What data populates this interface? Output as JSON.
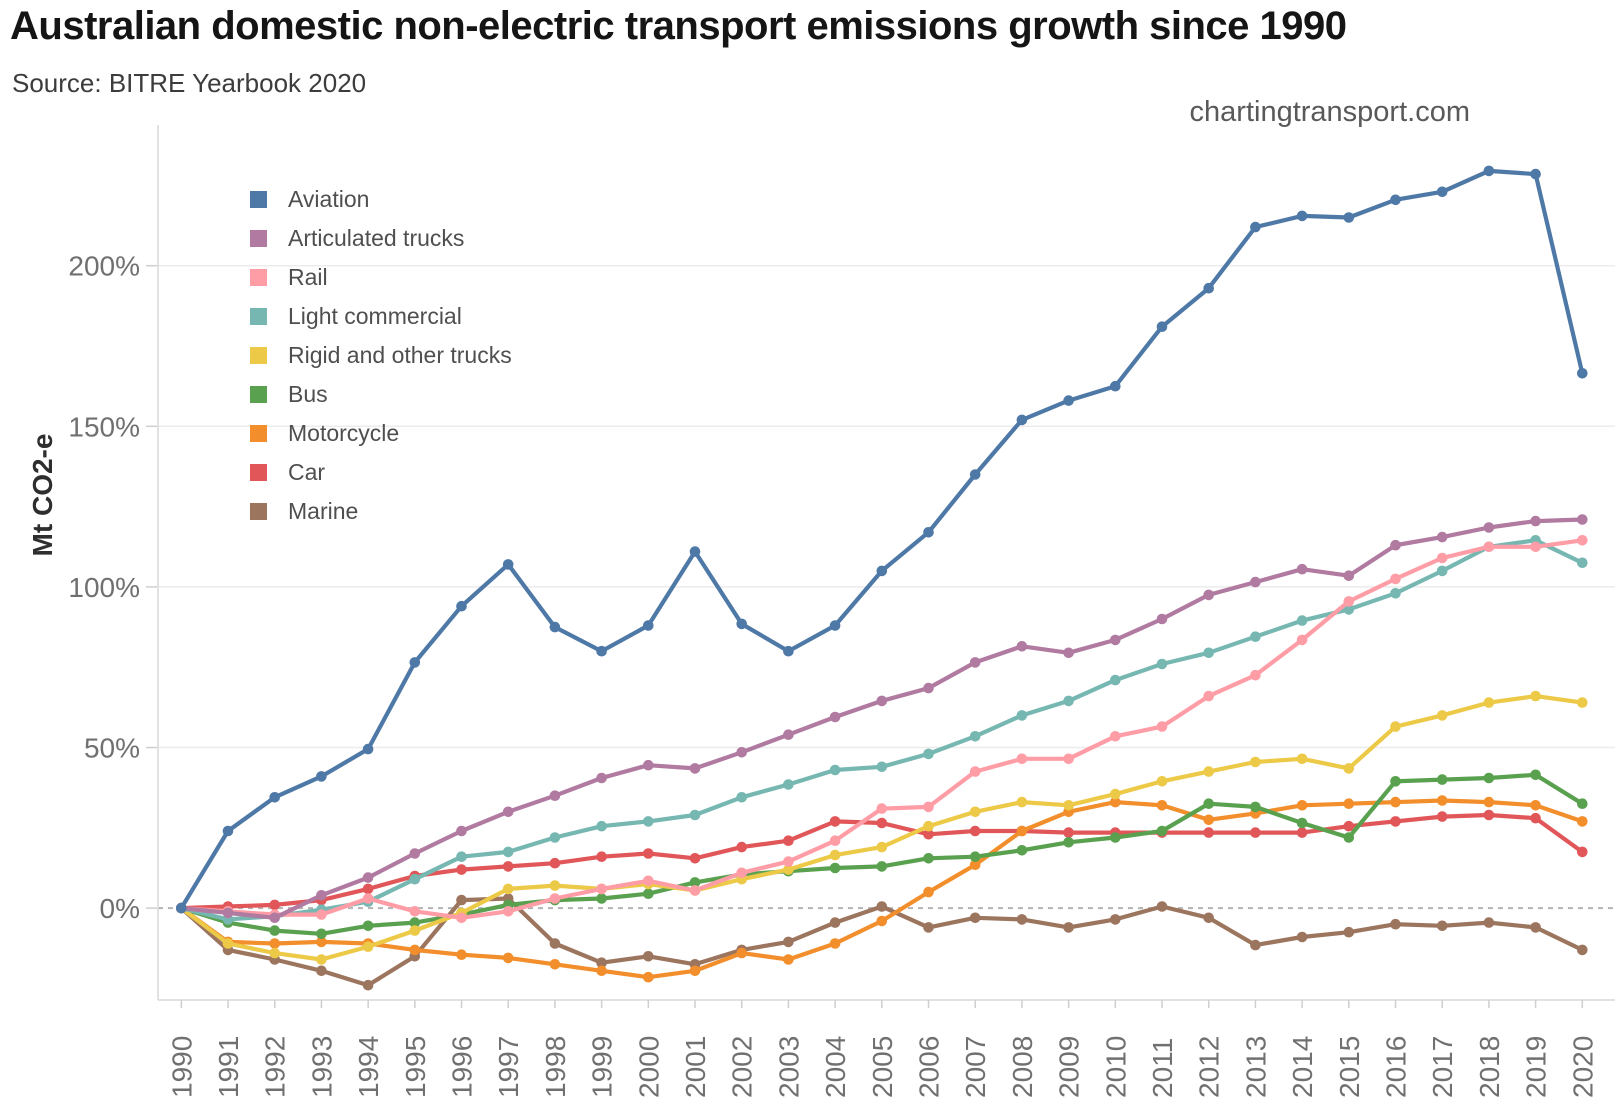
{
  "header": {
    "title": "Australian domestic non-electric transport emissions growth since 1990",
    "source": "Source: BITRE Yearbook 2020",
    "watermark": "chartingtransport.com"
  },
  "chart_data": {
    "type": "line",
    "title": "Australian domestic non-electric transport emissions growth since 1990",
    "xlabel": "",
    "ylabel": "Mt CO2-e",
    "unit": "% growth since 1990",
    "grid": "horizontal",
    "zero_line": "dashed",
    "legend_position": "upper-left-inside",
    "xlim": [
      1989.5,
      2020.7
    ],
    "ylim": [
      -28.6,
      243.8
    ],
    "y_ticks": [
      0,
      50,
      100,
      150,
      200
    ],
    "y_tick_labels": [
      "0%",
      "50%",
      "100%",
      "150%",
      "200%"
    ],
    "x": [
      1990,
      1991,
      1992,
      1993,
      1994,
      1995,
      1996,
      1997,
      1998,
      1999,
      2000,
      2001,
      2002,
      2003,
      2004,
      2005,
      2006,
      2007,
      2008,
      2009,
      2010,
      2011,
      2012,
      2013,
      2014,
      2015,
      2016,
      2017,
      2018,
      2019,
      2020
    ],
    "x_tick_labels": [
      "1990",
      "1991",
      "1992",
      "1993",
      "1994",
      "1995",
      "1996",
      "1997",
      "1998",
      "1999",
      "2000",
      "2001",
      "2002",
      "2003",
      "2004",
      "2005",
      "2006",
      "2007",
      "2008",
      "2009",
      "2010",
      "2011",
      "2012",
      "2013",
      "2014",
      "2015",
      "2016",
      "2017",
      "2018",
      "2019",
      "2020"
    ],
    "series": [
      {
        "name": "Aviation",
        "color": "#4e79a7",
        "values": [
          0,
          24,
          34.5,
          41,
          49.5,
          76.5,
          94,
          107,
          87.5,
          80,
          88,
          111,
          88.5,
          80,
          88,
          105,
          117,
          135,
          152,
          158,
          162.5,
          181,
          193,
          212,
          215.5,
          215,
          220.5,
          223,
          229.5,
          228.5,
          166.5
        ]
      },
      {
        "name": "Articulated trucks",
        "color": "#b07aa1",
        "values": [
          0,
          -1.5,
          -3,
          4,
          9.5,
          17,
          24,
          30,
          35,
          40.5,
          44.5,
          43.5,
          48.5,
          54,
          59.5,
          64.5,
          68.5,
          76.5,
          81.5,
          79.5,
          83.5,
          90,
          97.5,
          101.5,
          105.5,
          103.5,
          113,
          115.5,
          118.5,
          120.5,
          121
        ]
      },
      {
        "name": "Rail",
        "color": "#ff9da7",
        "values": [
          0,
          -1,
          -2,
          -2,
          3,
          -1,
          -3,
          -1,
          3,
          6,
          8.5,
          5.5,
          11,
          14.5,
          21,
          31,
          31.5,
          42.5,
          46.5,
          46.5,
          53.5,
          56.5,
          66,
          72.5,
          83.5,
          95.5,
          102.5,
          109,
          112.5,
          112.5,
          114.5
        ]
      },
      {
        "name": "Light commercial",
        "color": "#76b7b2",
        "values": [
          0,
          -3.5,
          -2.5,
          -0.5,
          2,
          9,
          16,
          17.5,
          22,
          25.5,
          27,
          29,
          34.5,
          38.5,
          43,
          44,
          48,
          53.5,
          60,
          64.5,
          71,
          76,
          79.5,
          84.5,
          89.5,
          93,
          98,
          105,
          112.5,
          114.5,
          107.5
        ]
      },
      {
        "name": "Rigid and other trucks",
        "color": "#edc948",
        "values": [
          0,
          -11,
          -14,
          -16,
          -12,
          -7,
          -1.5,
          6,
          7,
          6,
          7.5,
          5.5,
          9,
          12,
          16.5,
          19,
          25.5,
          30,
          33,
          32,
          35.5,
          39.5,
          42.5,
          45.5,
          46.5,
          43.5,
          56.5,
          60,
          64,
          66,
          64
        ]
      },
      {
        "name": "Bus",
        "color": "#59a14f",
        "values": [
          0,
          -4.5,
          -7,
          -8,
          -5.5,
          -4.5,
          -2,
          1,
          2.5,
          3,
          4.5,
          8,
          10.5,
          11.5,
          12.5,
          13,
          15.5,
          16,
          18,
          20.5,
          22,
          24,
          32.5,
          31.5,
          26.5,
          22,
          39.5,
          40,
          40.5,
          41.5,
          32.5
        ]
      },
      {
        "name": "Motorcycle",
        "color": "#f28e2b",
        "values": [
          0,
          -10.5,
          -11,
          -10.5,
          -11,
          -13,
          -14.5,
          -15.5,
          -17.5,
          -19.5,
          -21.5,
          -19.5,
          -14,
          -16,
          -11,
          -4,
          5,
          13.5,
          24,
          30,
          33,
          32,
          27.5,
          29.5,
          32,
          32.5,
          33,
          33.5,
          33,
          32,
          27
        ]
      },
      {
        "name": "Car",
        "color": "#e15759",
        "values": [
          0,
          0.5,
          1,
          2.5,
          6,
          10,
          12,
          13,
          14,
          16,
          17,
          15.5,
          19,
          21,
          27,
          26.5,
          23,
          24,
          24,
          23.5,
          23.5,
          23.5,
          23.5,
          23.5,
          23.5,
          25.5,
          27,
          28.5,
          29,
          28,
          17.5
        ]
      },
      {
        "name": "Marine",
        "color": "#9c755f",
        "values": [
          0,
          -13,
          -16,
          -19.5,
          -24,
          -15,
          2.5,
          3,
          -11,
          -17,
          -15,
          -17.5,
          -13,
          -10.5,
          -4.5,
          0.5,
          -6,
          -3,
          -3.5,
          -6,
          -3.5,
          0.5,
          -3,
          -11.5,
          -9,
          -7.5,
          -5,
          -5.5,
          -4.5,
          -6,
          -13
        ]
      }
    ],
    "style": {
      "background": "#ffffff",
      "gridline_color": "#ececec",
      "zero_line_color": "#b3b3b3",
      "axis_border_color": "#d9d9d9",
      "tick_mark_color": "#cfcfcf",
      "tick_label_color": "#707070",
      "line_width": 4.2,
      "marker_radius": 5.3
    }
  }
}
